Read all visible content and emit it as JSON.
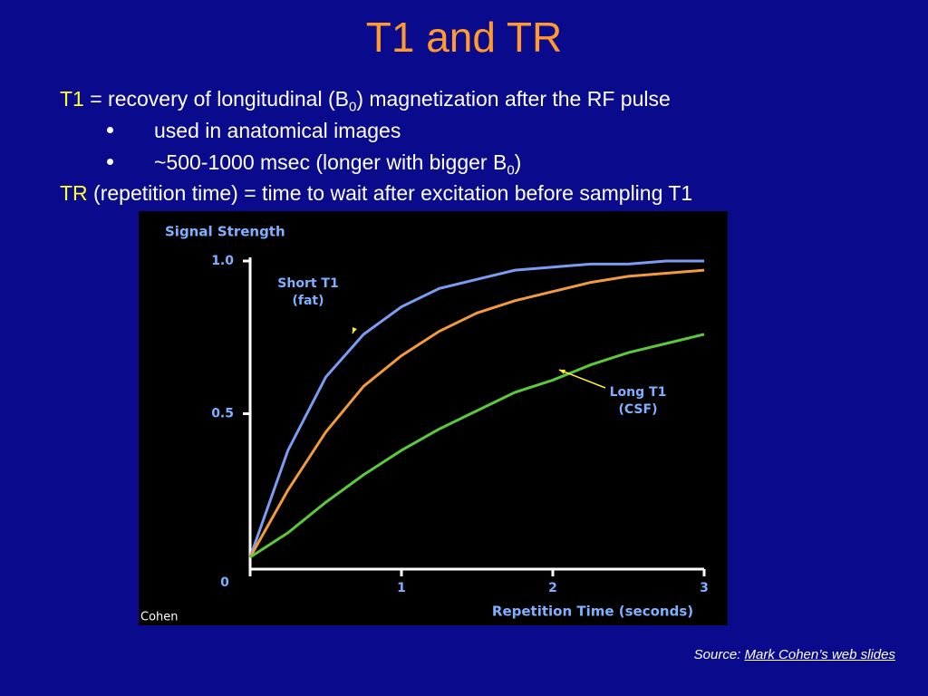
{
  "slide": {
    "title": "T1 and TR",
    "line1": {
      "term": "T1",
      "text_a": " = recovery of longitudinal (B",
      "sub": "0",
      "text_b": ") magnetization after the RF pulse"
    },
    "bullets": [
      {
        "text_a": "used in anatomical images"
      },
      {
        "text_a": "~500-1000 msec (longer with bigger B",
        "sub": "0",
        "text_b": ")"
      }
    ],
    "line2": {
      "term": "TR",
      "text_a": " (repetition time) = time to wait after excitation before sampling T1"
    },
    "source": {
      "label": "Source: ",
      "link": "Mark Cohen’s web slides"
    }
  },
  "chart_data": {
    "type": "line",
    "y_label": "Signal Strength",
    "x_label": "Repetition Time (seconds)",
    "credit": "Cohen",
    "x": [
      0,
      0.25,
      0.5,
      0.75,
      1,
      1.25,
      1.5,
      1.75,
      2,
      2.25,
      2.5,
      2.75,
      3
    ],
    "series": [
      {
        "color": "#7b9cf2",
        "values": [
          0.03,
          0.38,
          0.62,
          0.76,
          0.85,
          0.91,
          0.94,
          0.97,
          0.98,
          0.99,
          0.99,
          1.0,
          1.0
        ]
      },
      {
        "color": "#f29a3c",
        "values": [
          0.03,
          0.25,
          0.44,
          0.59,
          0.69,
          0.77,
          0.83,
          0.87,
          0.9,
          0.93,
          0.95,
          0.96,
          0.97
        ]
      },
      {
        "color": "#5cc83c",
        "values": [
          0.03,
          0.11,
          0.21,
          0.3,
          0.38,
          0.45,
          0.51,
          0.57,
          0.61,
          0.66,
          0.7,
          0.73,
          0.76
        ]
      }
    ],
    "annotations": [
      {
        "lines": [
          "Short T1",
          "(fat)"
        ],
        "series": 0
      },
      {
        "lines": [
          "Long T1",
          "(CSF)"
        ],
        "series": 2
      }
    ],
    "xlim": [
      0,
      3
    ],
    "xticks": [
      0,
      1,
      2,
      3
    ],
    "ylim": [
      0,
      1
    ],
    "yticks": [
      0,
      0.5,
      {
        "value": 1,
        "label": "1.0"
      }
    ]
  }
}
